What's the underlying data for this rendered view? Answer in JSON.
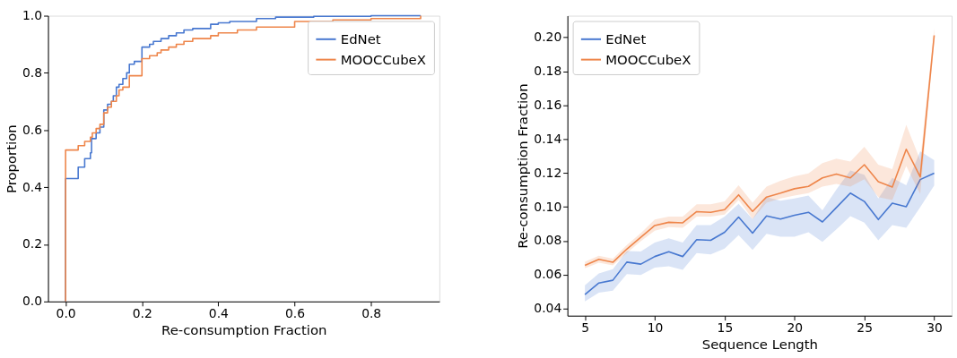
{
  "chart_data": [
    {
      "type": "step",
      "xlabel": "Re-consumption Fraction",
      "ylabel": "Proportion",
      "legend": "top right",
      "grid": false,
      "xlim": [
        -0.046,
        0.979
      ],
      "ylim": [
        0,
        1
      ],
      "xticks": [
        {
          "value": 0,
          "label": "0.0"
        },
        {
          "value": 0.2,
          "label": "0.2"
        },
        {
          "value": 0.4,
          "label": "0.4"
        },
        {
          "value": 0.6,
          "label": "0.6"
        },
        {
          "value": 0.8,
          "label": "0.8"
        }
      ],
      "yticks": [
        {
          "value": 0,
          "label": "0.0"
        },
        {
          "value": 0.2,
          "label": "0.2"
        },
        {
          "value": 0.4,
          "label": "0.4"
        },
        {
          "value": 0.6,
          "label": "0.6"
        },
        {
          "value": 0.8,
          "label": "0.8"
        },
        {
          "value": 1,
          "label": "1.0"
        }
      ],
      "series": [
        {
          "name": "EdNet",
          "color": "#4878d0",
          "x": [
            0,
            0,
            0.033,
            0.05,
            0.065,
            0.068,
            0.08,
            0.09,
            0.1,
            0.1,
            0.11,
            0.12,
            0.125,
            0.133,
            0.14,
            0.15,
            0.16,
            0.167,
            0.18,
            0.2,
            0.2,
            0.22,
            0.23,
            0.25,
            0.27,
            0.29,
            0.31,
            0.333,
            0.38,
            0.4,
            0.43,
            0.5,
            0.55,
            0.65,
            0.8,
            0.93
          ],
          "values": [
            0,
            0.43,
            0.47,
            0.5,
            0.52,
            0.57,
            0.59,
            0.61,
            0.63,
            0.67,
            0.69,
            0.7,
            0.72,
            0.75,
            0.76,
            0.78,
            0.8,
            0.83,
            0.84,
            0.85,
            0.89,
            0.9,
            0.91,
            0.92,
            0.93,
            0.94,
            0.95,
            0.955,
            0.97,
            0.975,
            0.98,
            0.99,
            0.995,
            0.998,
            1.0,
            1.0
          ]
        },
        {
          "name": "MOOCCubeX",
          "color": "#ee854a",
          "x": [
            0,
            0,
            0.033,
            0.033,
            0.05,
            0.065,
            0.07,
            0.08,
            0.09,
            0.1,
            0.1,
            0.11,
            0.12,
            0.133,
            0.14,
            0.15,
            0.167,
            0.167,
            0.2,
            0.2,
            0.22,
            0.24,
            0.25,
            0.27,
            0.29,
            0.31,
            0.333,
            0.38,
            0.4,
            0.45,
            0.5,
            0.6,
            0.7,
            0.8,
            0.93
          ],
          "values": [
            0,
            0.53,
            0.53,
            0.545,
            0.56,
            0.575,
            0.59,
            0.605,
            0.62,
            0.63,
            0.66,
            0.68,
            0.7,
            0.72,
            0.74,
            0.75,
            0.76,
            0.79,
            0.8,
            0.85,
            0.86,
            0.87,
            0.88,
            0.89,
            0.9,
            0.91,
            0.92,
            0.93,
            0.94,
            0.95,
            0.96,
            0.98,
            0.985,
            0.99,
            1.0
          ]
        }
      ]
    },
    {
      "type": "line",
      "xlabel": "Sequence Length",
      "ylabel": "Re-consumption Fraction",
      "legend": "top left",
      "grid": false,
      "xlim": [
        3.75,
        31.25
      ],
      "ylim": [
        0.0358,
        0.2128
      ],
      "xticks": [
        5,
        10,
        15,
        20,
        25,
        30
      ],
      "yticks": [
        0.04,
        0.06,
        0.08,
        {
          "value": 0.1,
          "label": "0.10"
        },
        0.12,
        0.14,
        0.16,
        0.18,
        {
          "value": 0.2,
          "label": "0.20"
        }
      ],
      "x": [
        5,
        6,
        7,
        8,
        9,
        10,
        11,
        12,
        13,
        14,
        15,
        16,
        17,
        18,
        19,
        20,
        21,
        22,
        23,
        24,
        25,
        26,
        27,
        28,
        29,
        30
      ],
      "series": [
        {
          "name": "EdNet",
          "color": "#4878d0",
          "values": [
            0.0482,
            0.0551,
            0.0567,
            0.0674,
            0.0662,
            0.0707,
            0.0735,
            0.0707,
            0.0807,
            0.0803,
            0.085,
            0.094,
            0.0845,
            0.0947,
            0.0928,
            0.0951,
            0.0968,
            0.0911,
            0.0996,
            0.1081,
            0.1032,
            0.0925,
            0.1022,
            0.1001,
            0.1161,
            0.1199
          ],
          "lower": [
            0.0442,
            0.0494,
            0.0506,
            0.0603,
            0.0598,
            0.0641,
            0.065,
            0.0628,
            0.0728,
            0.072,
            0.0754,
            0.0833,
            0.0746,
            0.0841,
            0.0824,
            0.0824,
            0.085,
            0.0794,
            0.0867,
            0.0945,
            0.0907,
            0.0803,
            0.0893,
            0.0876,
            0.0998,
            0.1126
          ],
          "upper": [
            0.0537,
            0.0607,
            0.0633,
            0.074,
            0.0737,
            0.0789,
            0.0815,
            0.0789,
            0.0893,
            0.0893,
            0.0942,
            0.1018,
            0.0928,
            0.1058,
            0.1036,
            0.105,
            0.1067,
            0.098,
            0.1102,
            0.1215,
            0.1189,
            0.105,
            0.1171,
            0.1128,
            0.1328,
            0.1276
          ]
        },
        {
          "name": "MOOCCubeX",
          "color": "#ee854a",
          "values": [
            0.0655,
            0.069,
            0.0673,
            0.0751,
            0.082,
            0.089,
            0.0909,
            0.0906,
            0.0972,
            0.0968,
            0.0984,
            0.1071,
            0.0973,
            0.1058,
            0.1081,
            0.1107,
            0.1121,
            0.1171,
            0.1194,
            0.1171,
            0.1249,
            0.1149,
            0.1117,
            0.134,
            0.1177,
            0.2012
          ],
          "lower": [
            0.0638,
            0.0671,
            0.0655,
            0.0728,
            0.0798,
            0.0859,
            0.088,
            0.0876,
            0.0942,
            0.0942,
            0.0954,
            0.1041,
            0.0928,
            0.1024,
            0.105,
            0.1067,
            0.1081,
            0.1119,
            0.1136,
            0.1119,
            0.1163,
            0.1058,
            0.1041,
            0.1241,
            0.1076,
            0.1979
          ],
          "upper": [
            0.0676,
            0.0711,
            0.0694,
            0.0775,
            0.0845,
            0.0925,
            0.0942,
            0.0942,
            0.1015,
            0.1015,
            0.1032,
            0.1128,
            0.1024,
            0.1119,
            0.1154,
            0.118,
            0.1197,
            0.1258,
            0.1284,
            0.1267,
            0.1354,
            0.1249,
            0.1223,
            0.1484,
            0.1276,
            0.2054
          ]
        }
      ]
    }
  ]
}
